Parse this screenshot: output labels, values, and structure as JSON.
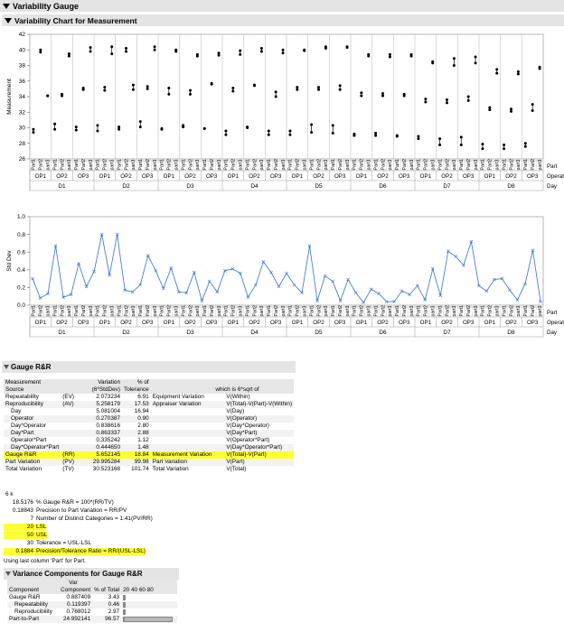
{
  "report": {
    "title": "Variability Gauge",
    "var_chart_title": "Variability Chart for Measurement"
  },
  "factors": {
    "days": [
      "D1",
      "D2",
      "D3",
      "D4",
      "D5",
      "D6",
      "D7",
      "D8"
    ],
    "operators": [
      "OP1",
      "OP2",
      "OP3"
    ],
    "parts": [
      "Part1",
      "Part2",
      "part3"
    ],
    "row_labels": [
      "Part",
      "Operator",
      "Day"
    ]
  },
  "chart_data": [
    {
      "type": "scatter",
      "ylabel": "Measurement",
      "ylim": [
        26,
        42
      ],
      "yticks": [
        26,
        28,
        30,
        32,
        34,
        36,
        38,
        40,
        42
      ],
      "grid": false,
      "values": [
        [
          [
            29.4,
            29.8
          ],
          [
            39.7,
            40.0
          ],
          [
            34.1,
            34.1
          ]
        ],
        [
          [
            29.8,
            30.5
          ],
          [
            34.1,
            34.3
          ],
          [
            39.2,
            39.5
          ]
        ],
        [
          [
            29.7,
            30.1
          ],
          [
            34.9,
            35.1
          ],
          [
            39.8,
            40.3
          ]
        ],
        [
          [
            29.6,
            30.3
          ],
          [
            34.8,
            35.2
          ],
          [
            39.5,
            40.4
          ]
        ],
        [
          [
            29.8,
            30.1
          ],
          [
            39.8,
            40.2
          ],
          [
            34.9,
            35.5
          ]
        ],
        [
          [
            30.1,
            30.8
          ],
          [
            35.0,
            35.3
          ],
          [
            40.0,
            40.4
          ]
        ],
        [
          [
            29.8,
            29.9
          ],
          [
            34.3,
            35.1
          ],
          [
            39.8,
            40.0
          ]
        ],
        [
          [
            30.1,
            30.3
          ],
          [
            34.3,
            34.8
          ],
          [
            39.2,
            39.4
          ]
        ],
        [
          [
            29.9,
            29.9
          ],
          [
            35.6,
            35.7
          ],
          [
            39.3,
            39.6
          ]
        ],
        [
          [
            29.1,
            29.6
          ],
          [
            34.7,
            35.1
          ],
          [
            39.4,
            39.9
          ]
        ],
        [
          [
            30.0,
            30.1
          ],
          [
            35.4,
            35.5
          ],
          [
            39.8,
            40.2
          ]
        ],
        [
          [
            29.1,
            29.6
          ],
          [
            34.0,
            34.6
          ],
          [
            39.6,
            40.0
          ]
        ],
        [
          [
            29.1,
            29.6
          ],
          [
            34.9,
            35.2
          ],
          [
            39.9,
            40.0
          ]
        ],
        [
          [
            29.4,
            30.4
          ],
          [
            34.9,
            35.2
          ],
          [
            40.2,
            40.4
          ]
        ],
        [
          [
            29.3,
            30.3
          ],
          [
            34.9,
            35.4
          ],
          [
            40.3,
            40.4
          ]
        ],
        [
          [
            29.0,
            29.2
          ],
          [
            34.1,
            34.5
          ],
          [
            39.2,
            39.4
          ]
        ],
        [
          [
            29.0,
            29.3
          ],
          [
            34.1,
            34.4
          ],
          [
            39.1,
            39.4
          ]
        ],
        [
          [
            28.9,
            29.0
          ],
          [
            34.1,
            34.3
          ],
          [
            39.2,
            39.4
          ]
        ],
        [
          [
            28.6,
            28.9
          ],
          [
            33.3,
            33.7
          ],
          [
            38.3,
            38.5
          ]
        ],
        [
          [
            27.8,
            28.6
          ],
          [
            33.2,
            33.6
          ],
          [
            38.0,
            38.9
          ]
        ],
        [
          [
            27.8,
            28.8
          ],
          [
            33.5,
            34.0
          ],
          [
            38.3,
            39.1
          ]
        ],
        [
          [
            27.3,
            27.9
          ],
          [
            32.3,
            32.6
          ],
          [
            37.0,
            37.5
          ]
        ],
        [
          [
            27.3,
            27.8
          ],
          [
            32.1,
            32.4
          ],
          [
            36.9,
            37.2
          ]
        ],
        [
          [
            27.6,
            28.0
          ],
          [
            32.2,
            33.0
          ],
          [
            37.6,
            37.8
          ]
        ]
      ]
    },
    {
      "type": "line",
      "ylabel": "Std Dev",
      "ylim": [
        0,
        1.0
      ],
      "yticks": [
        0.0,
        0.2,
        0.4,
        0.6,
        0.8,
        1.0
      ],
      "grid": false,
      "color": "#4a7fd4",
      "values": [
        0.3,
        0.08,
        0.13,
        0.67,
        0.09,
        0.12,
        0.47,
        0.21,
        0.38,
        0.8,
        0.34,
        0.8,
        0.17,
        0.15,
        0.23,
        0.56,
        0.39,
        0.19,
        0.42,
        0.15,
        0.14,
        0.37,
        0.05,
        0.27,
        0.15,
        0.39,
        0.41,
        0.36,
        0.09,
        0.23,
        0.49,
        0.37,
        0.21,
        0.36,
        0.23,
        0.14,
        0.67,
        0.05,
        0.33,
        0.27,
        0.05,
        0.29,
        0.14,
        0.03,
        0.18,
        0.13,
        0.04,
        0.04,
        0.16,
        0.12,
        0.22,
        0.06,
        0.41,
        0.11,
        0.61,
        0.55,
        0.45,
        0.72,
        0.22,
        0.16,
        0.29,
        0.3,
        0.17,
        0.06,
        0.24,
        0.62,
        0.04
      ]
    }
  ],
  "grr": {
    "title": "Gauge R&R",
    "headers": {
      "measurement": "Measurement",
      "source": "Source",
      "variation_1": "Variation",
      "variation_2": "(6*StdDev)",
      "pct_of": "% of",
      "tolerance": "Tolerance",
      "which_is": "which is 6*sqrt of"
    },
    "rows": [
      {
        "name": "Repeatability",
        "abbr": "(EV)",
        "value": "2.073234",
        "pct": "6.91",
        "desc": "Equipment Variation",
        "formula": "V(Within)",
        "indent": false,
        "hl": false
      },
      {
        "name": "Reproducibility",
        "abbr": "(AV)",
        "value": "5.258179",
        "pct": "17.53",
        "desc": "Appraiser Variation",
        "formula": "V(Total)-V(Part)-V(Within)",
        "indent": false,
        "hl": false
      },
      {
        "name": "Day",
        "abbr": "",
        "value": "5.081004",
        "pct": "16.94",
        "desc": "",
        "formula": "V(Day)",
        "indent": true,
        "hl": false
      },
      {
        "name": "Operator",
        "abbr": "",
        "value": "0.270387",
        "pct": "0.90",
        "desc": "",
        "formula": "V(Operator)",
        "indent": true,
        "hl": false
      },
      {
        "name": "Day*Operator",
        "abbr": "",
        "value": "0.838616",
        "pct": "2.80",
        "desc": "",
        "formula": "V(Day*Operator)",
        "indent": true,
        "hl": false
      },
      {
        "name": "Day*Part",
        "abbr": "",
        "value": "0.863337",
        "pct": "2.88",
        "desc": "",
        "formula": "V(Day*Part)",
        "indent": true,
        "hl": false
      },
      {
        "name": "Operator*Part",
        "abbr": "",
        "value": "0.335242",
        "pct": "1.12",
        "desc": "",
        "formula": "V(Operator*Part)",
        "indent": true,
        "hl": false
      },
      {
        "name": "Day*Operator*Part",
        "abbr": "",
        "value": "0.444650",
        "pct": "1.48",
        "desc": "",
        "formula": "V(Day*Operator*Part)",
        "indent": true,
        "hl": false
      },
      {
        "name": "Gauge R&R",
        "abbr": "(RR)",
        "value": "5.652145",
        "pct": "18.84",
        "desc": "Measurement Variation",
        "formula": "V(Total)-V(Part)",
        "indent": false,
        "hl": true
      },
      {
        "name": "Part Variation",
        "abbr": "(PV)",
        "value": "29.995284",
        "pct": "99.98",
        "desc": "Part Variation",
        "formula": "V(Part)",
        "indent": false,
        "hl": false
      },
      {
        "name": "Total Variation",
        "abbr": "(TV)",
        "value": "30.523168",
        "pct": "101.74",
        "desc": "Total Variation",
        "formula": "V(Total)",
        "indent": false,
        "hl": false
      }
    ],
    "k_line": "6  k",
    "stats": [
      {
        "value": "18.5176",
        "label": "% Gauge R&R = 100*(RR/TV)",
        "hl": false
      },
      {
        "value": "0.18843",
        "label": "Precision to Part Variation = RR/PV",
        "hl": false
      },
      {
        "value": "7",
        "label": "Number of Distinct Categories = 1.41(PV/RR)",
        "hl": false
      },
      {
        "value": "20",
        "label": "LSL",
        "hl": true
      },
      {
        "value": "50",
        "label": "USL",
        "hl": true
      },
      {
        "value": "30",
        "label": "Tolerance = USL-LSL",
        "hl": false
      },
      {
        "value": "0.1884",
        "label": "Precision/Tolerance Ratio = RR/(USL-LSL)",
        "hl": true
      }
    ],
    "note": "Using last column 'Part' for Part."
  },
  "varcomp": {
    "title": "Variance Components for Gauge R&R",
    "headers": {
      "component": "Component",
      "var_1": "Var",
      "var_2": "Component",
      "pct": "% of Total",
      "axis": "20 40 60 80"
    },
    "rows": [
      {
        "name": "Gauge R&R",
        "value": "0.887409",
        "pct": "3.43",
        "bar": 3.43,
        "indent": false
      },
      {
        "name": "Repeatability",
        "value": "0.119397",
        "pct": "0.46",
        "bar": 0.46,
        "indent": true
      },
      {
        "name": "Reproducibility",
        "value": "0.768012",
        "pct": "2.97",
        "bar": 2.97,
        "indent": true
      },
      {
        "name": "Part-to-Part",
        "value": "24.992141",
        "pct": "96.57",
        "bar": 96.57,
        "indent": false
      }
    ]
  }
}
